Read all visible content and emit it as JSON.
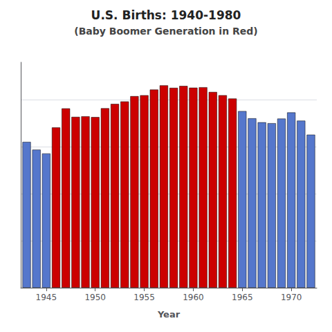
{
  "chart_data": {
    "type": "bar",
    "title": "U.S. Births: 1940-1980",
    "subtitle": "(Baby Boomer Generation in Red)",
    "xlabel": "Year",
    "x": [
      1943,
      1944,
      1945,
      1946,
      1947,
      1948,
      1949,
      1950,
      1951,
      1952,
      1953,
      1954,
      1955,
      1956,
      1957,
      1958,
      1959,
      1960,
      1961,
      1962,
      1963,
      1964,
      1965,
      1966,
      1967,
      1968,
      1969,
      1970,
      1971,
      1972
    ],
    "values": [
      3104000,
      2939000,
      2858000,
      3411000,
      3817000,
      3637000,
      3649000,
      3632000,
      3820000,
      3913000,
      3965000,
      4078000,
      4097000,
      4218000,
      4308000,
      4255000,
      4295000,
      4258000,
      4268000,
      4167000,
      4098000,
      4027000,
      3760000,
      3606000,
      3521000,
      3502000,
      3600000,
      3731000,
      3556000,
      3258000
    ],
    "colors": [
      "#5577cc",
      "#5577cc",
      "#5577cc",
      "#cc0000",
      "#cc0000",
      "#cc0000",
      "#cc0000",
      "#cc0000",
      "#cc0000",
      "#cc0000",
      "#cc0000",
      "#cc0000",
      "#cc0000",
      "#cc0000",
      "#cc0000",
      "#cc0000",
      "#cc0000",
      "#cc0000",
      "#cc0000",
      "#cc0000",
      "#cc0000",
      "#cc0000",
      "#5577cc",
      "#5577cc",
      "#5577cc",
      "#5577cc",
      "#5577cc",
      "#5577cc",
      "#5577cc",
      "#5577cc"
    ],
    "xlim": [
      1942.4,
      1972.6
    ],
    "xticks": [
      1945,
      1950,
      1955,
      1960,
      1965,
      1970
    ],
    "ylim": [
      0,
      4800000
    ],
    "yticks": [
      1000000,
      2000000,
      3000000,
      4000000
    ],
    "grid": true,
    "tick_labels": "x"
  }
}
